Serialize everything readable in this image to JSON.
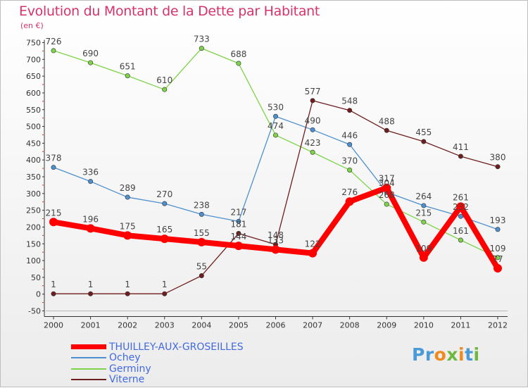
{
  "header": {
    "title": "Evolution du Montant de la Dette par Habitant",
    "subtitle": "(en €)"
  },
  "logo": {
    "text": "Proxiti"
  },
  "chart_data": {
    "type": "line",
    "title": "Evolution du Montant de la Dette par Habitant",
    "subtitle": "(en €)",
    "xlabel": "",
    "ylabel": "",
    "x": [
      "2000",
      "2001",
      "2002",
      "2003",
      "2004",
      "2005",
      "2006",
      "2007",
      "2008",
      "2009",
      "2010",
      "2011",
      "2012"
    ],
    "ylim": [
      -50,
      750
    ],
    "yticks": [
      -50,
      0,
      50,
      100,
      150,
      200,
      250,
      300,
      350,
      400,
      450,
      500,
      550,
      600,
      650,
      700,
      750
    ],
    "grid": false,
    "legend_position": "bottom-left",
    "series": [
      {
        "name": "THUILLEY-AUX-GROSEILLES",
        "color": "#ff0000",
        "values": [
          215,
          196,
          175,
          165,
          155,
          144,
          133,
          122,
          276,
          317,
          109,
          261,
          77
        ]
      },
      {
        "name": "Ochey",
        "color": "#4d90cd",
        "values": [
          378,
          336,
          289,
          270,
          238,
          217,
          530,
          490,
          446,
          304,
          264,
          232,
          193
        ]
      },
      {
        "name": "Germiny",
        "color": "#7ed34a",
        "values": [
          726,
          690,
          651,
          610,
          733,
          688,
          474,
          423,
          370,
          268,
          215,
          161,
          109
        ]
      },
      {
        "name": "Viterne",
        "color": "#6e1e1e",
        "values": [
          1,
          1,
          1,
          1,
          55,
          181,
          148,
          577,
          548,
          488,
          455,
          411,
          380
        ]
      }
    ],
    "data_labels": [
      {
        "series": "THUILLEY-AUX-GROSEILLES",
        "labels": [
          "215",
          "196",
          "175",
          "165",
          "155",
          "144",
          "133",
          "122",
          "276",
          "317",
          "109",
          "261",
          "77"
        ]
      },
      {
        "series": "Ochey",
        "labels": [
          "378",
          "336",
          "289",
          "270",
          "238",
          "217",
          "530",
          "490",
          "446",
          "304",
          "264",
          "232",
          "193"
        ]
      },
      {
        "series": "Germiny",
        "labels": [
          "726",
          "690",
          "651",
          "610",
          "733",
          "688",
          "474",
          "423",
          "370",
          "268",
          "215",
          "161",
          "109"
        ]
      },
      {
        "series": "Viterne",
        "labels": [
          "1",
          "1",
          "1",
          "1",
          "55",
          "181",
          "148",
          "577",
          "548",
          "488",
          "455",
          "411",
          "380"
        ]
      }
    ]
  }
}
